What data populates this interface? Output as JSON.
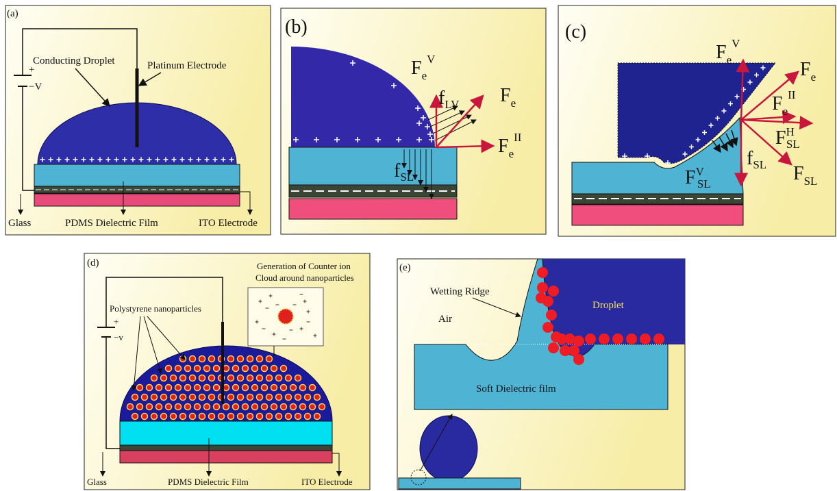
{
  "panel_a": {
    "label": "(a)",
    "droplet": "Conducting Droplet",
    "electrode": "Platinum Electrode",
    "battery_plus": "+",
    "battery_minus": "−",
    "voltage": "V",
    "glass": "Glass",
    "dielectric": "PDMS Dielectric Film",
    "ito": "ITO Electrode"
  },
  "panel_b": {
    "label": "(b)",
    "fev": {
      "main": "F",
      "sub": "e",
      "sup": "V"
    },
    "flv": {
      "main": "f",
      "sub": "LV"
    },
    "fe": {
      "main": "F",
      "sub": "e"
    },
    "feh": {
      "main": "F",
      "sub": "e",
      "sup": "II"
    },
    "fsl": {
      "main": "f",
      "sub": "SL"
    }
  },
  "panel_c": {
    "label": "(c)",
    "fev": {
      "main": "F",
      "sub": "e",
      "sup": "V"
    },
    "fe": {
      "main": "F",
      "sub": "e"
    },
    "feh": {
      "main": "F",
      "sub": "e",
      "sup": "II"
    },
    "fhsl": {
      "main": "F",
      "sup": "H",
      "sub": "SL"
    },
    "fvsl": {
      "main": "F",
      "sup": "V",
      "sub": "SL"
    },
    "fsl_small": {
      "main": "f",
      "sub": "SL"
    },
    "fsl": {
      "main": "F",
      "sub": "SL"
    }
  },
  "panel_d": {
    "label": "(d)",
    "inset_line1": "Generation of Counter ion",
    "inset_line2": "Cloud around nanoparticles",
    "nanoparticles": "Polystyrene nanoparticles",
    "battery_plus": "+",
    "battery_minus": "−",
    "voltage": "v",
    "glass": "Glass",
    "dielectric": "PDMS Dielectric Film",
    "ito": "ITO Electrode"
  },
  "panel_e": {
    "label": "(e)",
    "ridge": "Wetting Ridge",
    "air": "Air",
    "droplet": "Droplet",
    "film": "Soft Dielectric film"
  }
}
